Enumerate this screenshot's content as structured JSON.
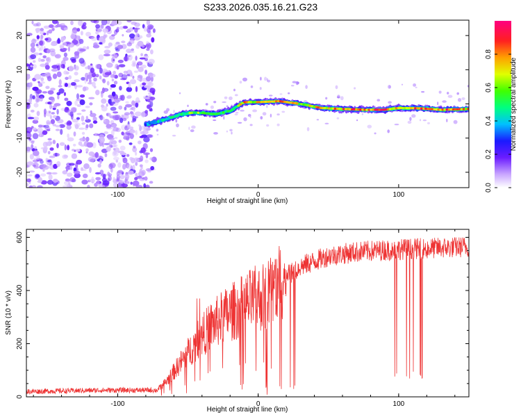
{
  "title": "S233.2026.035.16.21.G23",
  "chart_data": [
    {
      "type": "heatmap",
      "name": "spectrogram",
      "xlabel": "Height of straight line (km)",
      "ylabel": "Frequency (Hz)",
      "xlim": [
        -165,
        150
      ],
      "ylim": [
        -24.5,
        24.5
      ],
      "xticks": [
        -100,
        0,
        100
      ],
      "xtick_labels": [
        "-100",
        "0",
        "100"
      ],
      "yticks": [
        -20,
        -10,
        0,
        10,
        20
      ],
      "ytick_labels": [
        "-20",
        "-10",
        "0",
        "10",
        "20"
      ],
      "colorbar": {
        "label": "Normalized spectral amplitude",
        "ticks": [
          0.0,
          0.2,
          0.4,
          0.6,
          0.8
        ],
        "tick_labels": [
          "0.0",
          "0.2",
          "0.4",
          "0.6",
          "0.8"
        ],
        "range": [
          0,
          1
        ]
      },
      "noise_region_x": [
        -165,
        -74
      ],
      "ridge": {
        "x": [
          -80,
          -70,
          -62,
          -55,
          -45,
          -30,
          -20,
          -10,
          0,
          15,
          30,
          45,
          60,
          75,
          90,
          100,
          115,
          130,
          150
        ],
        "freq": [
          -6,
          -5,
          -4,
          -3,
          -2.5,
          -3,
          -2,
          0.5,
          0.5,
          0.8,
          0,
          -1.2,
          -1.5,
          -1.7,
          -1.7,
          -1.2,
          -1.3,
          -1.7,
          -1.5
        ],
        "amplitude": [
          0.35,
          0.45,
          0.5,
          0.55,
          0.65,
          0.6,
          0.5,
          0.8,
          0.75,
          0.85,
          0.7,
          0.8,
          0.85,
          0.9,
          0.9,
          0.8,
          0.85,
          0.9,
          0.8
        ]
      }
    },
    {
      "type": "line",
      "name": "snr",
      "xlabel": "Height of straight line (km)",
      "ylabel": "SNR (10 * v/v)",
      "xlim": [
        -165,
        150
      ],
      "ylim": [
        0,
        630
      ],
      "xticks": [
        -100,
        0,
        100
      ],
      "xtick_labels": [
        "-100",
        "0",
        "100"
      ],
      "yticks": [
        0,
        200,
        400,
        600
      ],
      "ytick_labels": [
        "0",
        "200",
        "400",
        "600"
      ],
      "color": "#ee3333",
      "trend": {
        "x": [
          -165,
          -110,
          -80,
          -72,
          -65,
          -55,
          -45,
          -35,
          -25,
          -15,
          -5,
          5,
          12,
          18,
          25,
          30,
          40,
          50,
          70,
          100,
          130,
          150
        ],
        "y": [
          20,
          25,
          25,
          25,
          60,
          130,
          200,
          260,
          300,
          330,
          360,
          380,
          420,
          450,
          470,
          490,
          510,
          530,
          545,
          555,
          560,
          565
        ]
      },
      "dropouts": [
        {
          "x": [
            5,
            28
          ],
          "min": 5
        },
        {
          "x": [
            95,
            120
          ],
          "min": 55
        }
      ]
    }
  ]
}
